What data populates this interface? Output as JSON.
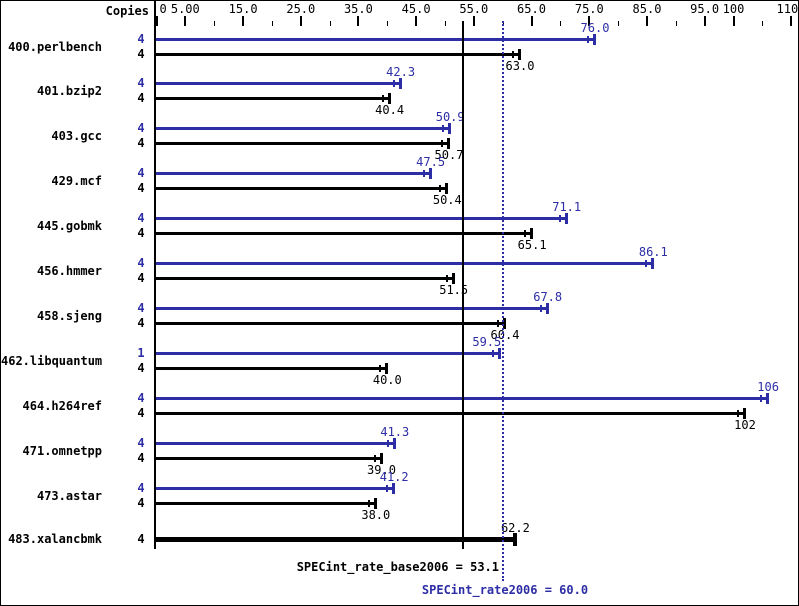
{
  "chart_data": {
    "type": "bar",
    "orientation": "horizontal",
    "title": "",
    "copies_header": "Copies",
    "colors": {
      "peak": "#2d2da5",
      "base": "#000000",
      "background": "#ffffff"
    },
    "x_axis": {
      "min": 0,
      "max": 110,
      "major_ticks": [
        {
          "value": 0,
          "label": "0"
        },
        {
          "value": 5,
          "label": "5.00"
        },
        {
          "value": 15,
          "label": "15.0"
        },
        {
          "value": 25,
          "label": "25.0"
        },
        {
          "value": 35,
          "label": "35.0"
        },
        {
          "value": 45,
          "label": "45.0"
        },
        {
          "value": 55,
          "label": "55.0"
        },
        {
          "value": 65,
          "label": "65.0"
        },
        {
          "value": 75,
          "label": "75.0"
        },
        {
          "value": 85,
          "label": "85.0"
        },
        {
          "value": 95,
          "label": "95.0"
        },
        {
          "value": 100,
          "label": "100"
        },
        {
          "value": 110,
          "label": "110"
        }
      ],
      "minor_ticks": [
        10,
        20,
        30,
        40,
        50,
        60,
        70,
        80,
        90,
        105
      ]
    },
    "benchmarks": [
      {
        "name": "400.perlbench",
        "bars": [
          {
            "series": "peak",
            "copies": "4",
            "value": 76.0,
            "label": "76.0"
          },
          {
            "series": "base",
            "copies": "4",
            "value": 63.0,
            "label": "63.0"
          }
        ]
      },
      {
        "name": "401.bzip2",
        "bars": [
          {
            "series": "peak",
            "copies": "4",
            "value": 42.3,
            "label": "42.3"
          },
          {
            "series": "base",
            "copies": "4",
            "value": 40.4,
            "label": "40.4"
          }
        ]
      },
      {
        "name": "403.gcc",
        "bars": [
          {
            "series": "peak",
            "copies": "4",
            "value": 50.9,
            "label": "50.9"
          },
          {
            "series": "base",
            "copies": "4",
            "value": 50.7,
            "label": "50.7"
          }
        ]
      },
      {
        "name": "429.mcf",
        "bars": [
          {
            "series": "peak",
            "copies": "4",
            "value": 47.5,
            "label": "47.5"
          },
          {
            "series": "base",
            "copies": "4",
            "value": 50.4,
            "label": "50.4"
          }
        ]
      },
      {
        "name": "445.gobmk",
        "bars": [
          {
            "series": "peak",
            "copies": "4",
            "value": 71.1,
            "label": "71.1"
          },
          {
            "series": "base",
            "copies": "4",
            "value": 65.1,
            "label": "65.1"
          }
        ]
      },
      {
        "name": "456.hmmer",
        "bars": [
          {
            "series": "peak",
            "copies": "4",
            "value": 86.1,
            "label": "86.1"
          },
          {
            "series": "base",
            "copies": "4",
            "value": 51.5,
            "label": "51.5"
          }
        ]
      },
      {
        "name": "458.sjeng",
        "bars": [
          {
            "series": "peak",
            "copies": "4",
            "value": 67.8,
            "label": "67.8"
          },
          {
            "series": "base",
            "copies": "4",
            "value": 60.4,
            "label": "60.4"
          }
        ]
      },
      {
        "name": "462.libquantum",
        "bars": [
          {
            "series": "peak",
            "copies": "1",
            "value": 59.5,
            "label": "59.5",
            "label_dx": -13
          },
          {
            "series": "base",
            "copies": "4",
            "value": 40.0,
            "label": "40.0"
          }
        ]
      },
      {
        "name": "464.h264ref",
        "bars": [
          {
            "series": "peak",
            "copies": "4",
            "value": 106,
            "label": "106"
          },
          {
            "series": "base",
            "copies": "4",
            "value": 102,
            "label": "102"
          }
        ]
      },
      {
        "name": "471.omnetpp",
        "bars": [
          {
            "series": "peak",
            "copies": "4",
            "value": 41.3,
            "label": "41.3"
          },
          {
            "series": "base",
            "copies": "4",
            "value": 39.0,
            "label": "39.0"
          }
        ]
      },
      {
        "name": "473.astar",
        "bars": [
          {
            "series": "peak",
            "copies": "4",
            "value": 41.2,
            "label": "41.2"
          },
          {
            "series": "base",
            "copies": "4",
            "value": 38.0,
            "label": "38.0"
          }
        ]
      },
      {
        "name": "483.xalancbmk",
        "bars": [
          {
            "series": "base",
            "copies": "4",
            "value": 62.2,
            "label": "62.2",
            "thick": true,
            "label_position": "above"
          }
        ]
      }
    ],
    "summary": [
      {
        "text": "SPECint_rate_base2006 = 53.1",
        "metric": "SPECint_rate_base2006",
        "value": 53.1,
        "line_style": "solid",
        "color": "#000000"
      },
      {
        "text": "SPECint_rate2006 = 60.0",
        "metric": "SPECint_rate2006",
        "value": 60.0,
        "line_style": "dotted",
        "color": "#2d2da5"
      }
    ]
  }
}
